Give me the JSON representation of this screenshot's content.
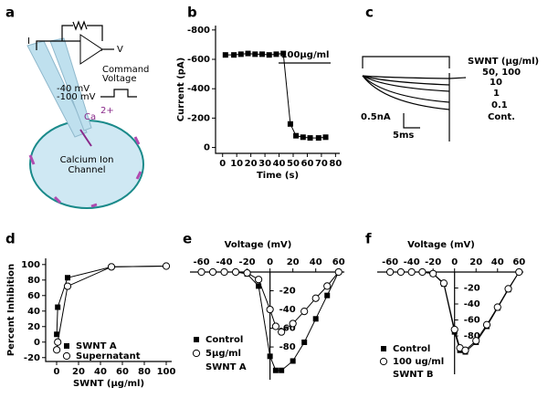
{
  "panel_labels": [
    "a",
    "b",
    "c",
    "d",
    "e",
    "f"
  ],
  "diagram": {
    "i_label": "I",
    "v_label": "V",
    "command": [
      "Command",
      "Voltage"
    ],
    "levels": [
      "-40  mV",
      "-100 mV"
    ],
    "ion": "Ca",
    "ion_charge": "2+",
    "channel": [
      "Calcium Ion",
      "Channel"
    ]
  },
  "traces": {
    "legend_title": "SWNT (µg/ml)",
    "concentrations": [
      "50, 100",
      "10",
      "1",
      "0.1",
      "Cont."
    ],
    "scale": [
      "0.5nA",
      "5ms"
    ]
  },
  "chart_data": [
    {
      "type": "line",
      "y_label": "Current (pA)",
      "x_label": "Time (s)",
      "annotation": "100µg/ml",
      "xlim": [
        -5,
        83
      ],
      "xticks": [
        0,
        10,
        20,
        30,
        40,
        50,
        60,
        70,
        80
      ],
      "ylim": [
        40,
        -830
      ],
      "yticks": [
        -800,
        -600,
        -400,
        -200,
        0
      ],
      "series": [
        {
          "name": null,
          "color": "#000000",
          "marker": "square",
          "x": [
            2,
            8,
            13,
            18,
            23,
            28,
            33,
            38,
            43,
            48,
            52,
            57,
            62,
            68,
            73
          ],
          "values": [
            -630,
            -630,
            -635,
            -640,
            -635,
            -635,
            -630,
            -635,
            -640,
            -160,
            -80,
            -70,
            -65,
            -65,
            -70
          ]
        }
      ]
    },
    {
      "type": "scatter",
      "y_label": "Percent Inhibition",
      "x_label": "SWNT (µg/ml)",
      "xlim": [
        -10,
        105
      ],
      "xticks": [
        0,
        20,
        40,
        60,
        80,
        100
      ],
      "ylim": [
        -25,
        108
      ],
      "yticks": [
        -20,
        0,
        20,
        40,
        60,
        80,
        100
      ],
      "series": [
        {
          "name": "SWNT A",
          "color": "#000000",
          "marker": "square",
          "x": [
            0.1,
            1,
            10,
            50,
            100
          ],
          "values": [
            10,
            45,
            83,
            97,
            98
          ]
        },
        {
          "name": "Supernatant",
          "color": "#000000",
          "marker": "circle-open",
          "x": [
            0.1,
            1,
            10,
            50,
            100
          ],
          "values": [
            -10,
            0,
            72,
            97,
            98
          ]
        }
      ]
    },
    {
      "type": "line",
      "x_label": "Voltage (mV)",
      "legend_note": "SWNT A",
      "xlim": [
        -70,
        65
      ],
      "xticks": [
        -60,
        -40,
        -20,
        0,
        20,
        40,
        60
      ],
      "ylim": [
        -115,
        0
      ],
      "yticks": [
        -20,
        -40,
        -60,
        -80
      ],
      "series": [
        {
          "name": "Control",
          "color": "#000000",
          "marker": "square",
          "x": [
            -60,
            -50,
            -40,
            -30,
            -20,
            -10,
            0,
            5,
            10,
            20,
            30,
            40,
            50,
            60
          ],
          "values": [
            0,
            0,
            0,
            0,
            -2,
            -15,
            -90,
            -105,
            -105,
            -95,
            -75,
            -50,
            -25,
            0
          ]
        },
        {
          "name": "5µg/ml",
          "color": "#000000",
          "marker": "circle-open",
          "x": [
            -60,
            -50,
            -40,
            -30,
            -20,
            -10,
            0,
            5,
            10,
            20,
            30,
            40,
            50,
            60
          ],
          "values": [
            0,
            0,
            0,
            0,
            -1,
            -8,
            -40,
            -58,
            -64,
            -55,
            -42,
            -28,
            -15,
            0
          ]
        }
      ]
    },
    {
      "type": "line",
      "x_label": "Voltage (mV)",
      "legend_note": "SWNT B",
      "xlim": [
        -72,
        64
      ],
      "xticks": [
        -60,
        -40,
        -20,
        0,
        20,
        40,
        60
      ],
      "ylim": [
        -128,
        0
      ],
      "yticks": [
        -20,
        -40,
        -60,
        -80
      ],
      "series": [
        {
          "name": "Control",
          "color": "#000000",
          "marker": "square",
          "x": [
            -60,
            -50,
            -40,
            -30,
            -20,
            -10,
            0,
            5,
            10,
            20,
            30,
            40,
            50,
            60
          ],
          "values": [
            0,
            0,
            0,
            0,
            -2,
            -15,
            -75,
            -98,
            -100,
            -88,
            -68,
            -45,
            -22,
            0
          ]
        },
        {
          "name": "100 ug/ml",
          "color": "#000000",
          "marker": "circle-open",
          "x": [
            -60,
            -50,
            -40,
            -30,
            -20,
            -10,
            0,
            5,
            10,
            20,
            30,
            40,
            50,
            60
          ],
          "values": [
            0,
            0,
            0,
            0,
            -2,
            -14,
            -72,
            -95,
            -98,
            -86,
            -66,
            -44,
            -21,
            0
          ]
        }
      ]
    }
  ]
}
